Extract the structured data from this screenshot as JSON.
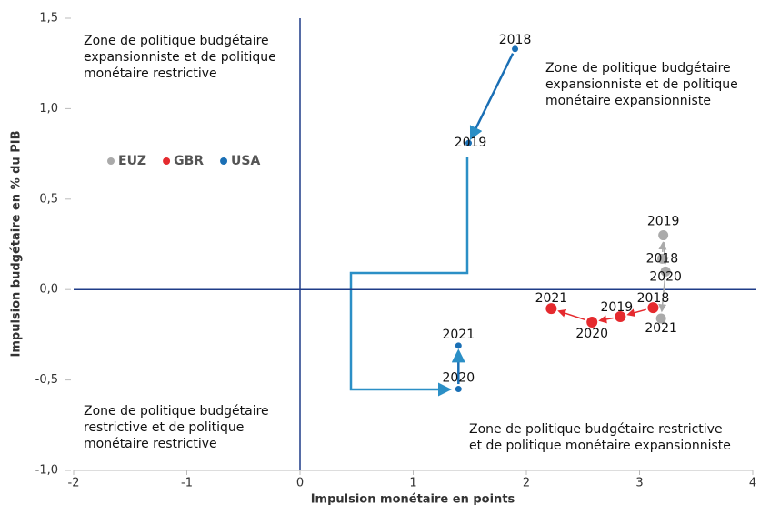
{
  "chart_data": {
    "type": "scatter",
    "xlabel": "Impulsion monétaire en points",
    "ylabel": "Impulsion budgétaire en % du PIB",
    "xlim": [
      -2,
      4
    ],
    "xticks": [
      -2,
      -1,
      0,
      1,
      2,
      3,
      4
    ],
    "ylim": [
      -1.0,
      1.5
    ],
    "yticks": [
      {
        "value": -1.0,
        "label": "-1,0"
      },
      {
        "value": -0.5,
        "label": "-0,5"
      },
      {
        "value": 0.0,
        "label": "0,0"
      },
      {
        "value": 0.5,
        "label": "0,5"
      },
      {
        "value": 1.0,
        "label": "1,0"
      },
      {
        "value": 1.5,
        "label": "1,5"
      }
    ],
    "series": [
      {
        "name": "EUZ",
        "color": "#aaaaaa",
        "labels": [
          "2018",
          "2019",
          "2020",
          "2021"
        ],
        "x": [
          3.2,
          3.21,
          3.23,
          3.19
        ],
        "values": [
          0.17,
          0.3,
          0.1,
          -0.16
        ]
      },
      {
        "name": "GBR",
        "color": "#e52a2e",
        "labels": [
          "2018",
          "2019",
          "2020",
          "2021"
        ],
        "x": [
          3.12,
          2.83,
          2.58,
          2.22
        ],
        "values": [
          -0.1,
          -0.15,
          -0.18,
          -0.105
        ]
      },
      {
        "name": "USA",
        "color": "#1a6fb5",
        "labels": [
          "2018",
          "2019",
          "2020",
          "2021"
        ],
        "x": [
          1.9,
          1.49,
          1.4,
          1.4
        ],
        "values": [
          1.33,
          0.81,
          -0.55,
          -0.31
        ]
      }
    ],
    "annotations": [
      [
        "Zone de politique budgétaire",
        "expansionniste et de politique",
        "monétaire restrictive"
      ],
      [
        "Zone de politique budgétaire",
        "expansionniste et de politique",
        "monétaire expansionniste"
      ],
      [
        "Zone de politique budgétaire",
        "restrictive et de politique",
        "monétaire restrictive"
      ],
      [
        "Zone de politique budgétaire restrictive",
        "et de politique monétaire expansionniste"
      ]
    ]
  }
}
